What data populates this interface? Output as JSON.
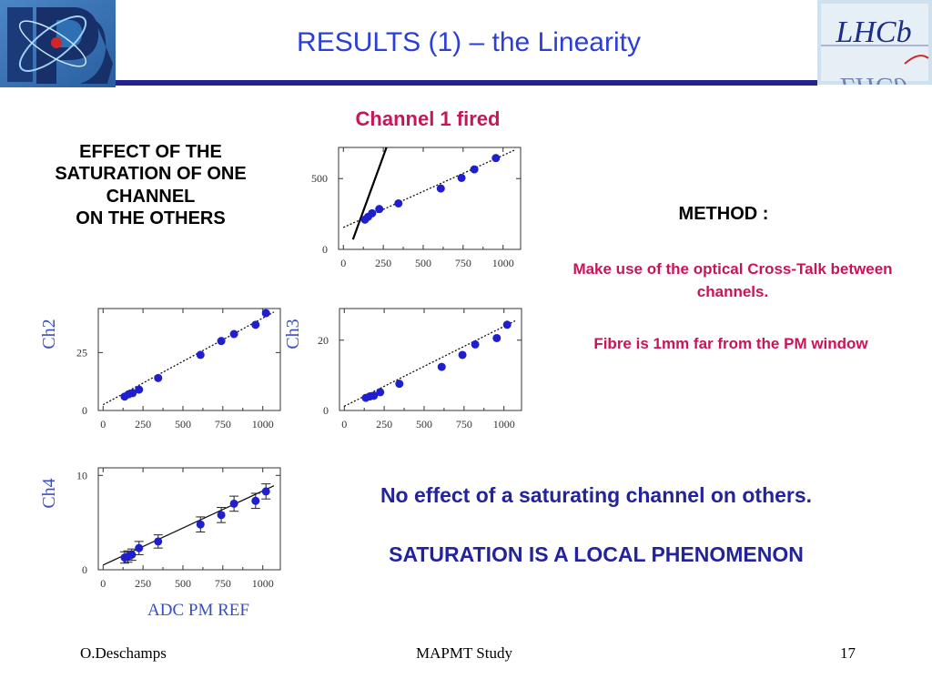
{
  "header": {
    "title": "RESULTS (1) – the Linearity",
    "left_logo": {
      "icon": "ipc-logo-icon",
      "background": "#2f6fb4",
      "mark": "#d3262a"
    },
    "right_logo": {
      "icon": "lhcb-logo-icon",
      "text": "LHCb",
      "background": "#cfe0ee"
    }
  },
  "colors": {
    "title": "#2b3fd6",
    "rule": "#23238e",
    "highlight": "#c8145a",
    "conclusion": "#23239e",
    "points": "#1f1fcf",
    "channel_labels": "#3a4fbe"
  },
  "left_note": {
    "lines": [
      "EFFECT OF THE",
      "SATURATION OF ONE",
      "CHANNEL",
      "ON THE OTHERS"
    ]
  },
  "method": {
    "heading": "METHOD :",
    "line1": "Make use of the optical Cross-Talk between channels.",
    "line2": "Fibre is 1mm far from the PM window"
  },
  "conclusions": {
    "line1": "No effect of a saturating channel on others.",
    "line2": "SATURATION IS A LOCAL PHENOMENON"
  },
  "footer": {
    "author": "O.Deschamps",
    "topic": "MAPMT Study",
    "page": "17"
  },
  "chart_data": [
    {
      "type": "scatter",
      "title": "Channel 1 fired",
      "channel_label": "",
      "xlabel": "",
      "xlim": [
        -30,
        1110
      ],
      "ylim": [
        0,
        720
      ],
      "xticks": [
        "0",
        "250",
        "500",
        "750",
        "1000"
      ],
      "yticks": [
        {
          "value": 0,
          "label": "0"
        },
        {
          "value": 500,
          "label": "500"
        }
      ],
      "x": [
        135,
        155,
        180,
        225,
        345,
        610,
        740,
        820,
        955
      ],
      "y": [
        210,
        230,
        255,
        285,
        325,
        430,
        505,
        565,
        645
      ],
      "error_bars": false,
      "fit_line": {
        "x": [
          0,
          1070
        ],
        "y": [
          155,
          700
        ],
        "style": "dotted"
      },
      "saturation_line": {
        "x": [
          60,
          270
        ],
        "y": [
          70,
          720
        ],
        "style": "solid"
      }
    },
    {
      "type": "scatter",
      "channel_label": "Ch2",
      "xlabel": "",
      "xlim": [
        -30,
        1110
      ],
      "ylim": [
        0,
        44
      ],
      "xticks": [
        "0",
        "250",
        "500",
        "750",
        "1000"
      ],
      "yticks": [
        {
          "value": 0,
          "label": "0"
        },
        {
          "value": 25,
          "label": "25"
        }
      ],
      "x": [
        135,
        160,
        185,
        225,
        345,
        610,
        740,
        820,
        955,
        1020
      ],
      "y": [
        6,
        7,
        7.5,
        9,
        14,
        24,
        30,
        33,
        37,
        42
      ],
      "error_bars": false,
      "fit_line": {
        "x": [
          0,
          1070
        ],
        "y": [
          2.5,
          42.5
        ],
        "style": "dotted"
      }
    },
    {
      "type": "scatter",
      "channel_label": "Ch3",
      "xlabel": "",
      "xlim": [
        -30,
        1110
      ],
      "ylim": [
        0,
        29
      ],
      "xticks": [
        "0",
        "250",
        "500",
        "750",
        "1000"
      ],
      "yticks": [
        {
          "value": 0,
          "label": "0"
        },
        {
          "value": 20,
          "label": "20"
        }
      ],
      "x": [
        135,
        160,
        185,
        225,
        345,
        610,
        740,
        820,
        955,
        1020
      ],
      "y": [
        3.6,
        4.0,
        4.2,
        5.2,
        7.6,
        12.4,
        15.8,
        18.8,
        20.6,
        24.4
      ],
      "error_bars": false,
      "fit_line": {
        "x": [
          0,
          1070
        ],
        "y": [
          1.2,
          25.5
        ],
        "style": "dotted"
      }
    },
    {
      "type": "scatter",
      "channel_label": "Ch4",
      "xlabel": "ADC PM REF",
      "xlim": [
        -30,
        1110
      ],
      "ylim": [
        0,
        10.8
      ],
      "xticks": [
        "0",
        "250",
        "500",
        "750",
        "1000"
      ],
      "yticks": [
        {
          "value": 0,
          "label": "0"
        },
        {
          "value": 10,
          "label": "10"
        }
      ],
      "x": [
        135,
        155,
        180,
        225,
        345,
        610,
        740,
        820,
        955,
        1020
      ],
      "y": [
        1.3,
        1.4,
        1.6,
        2.3,
        3.0,
        4.8,
        5.8,
        7.0,
        7.3,
        8.3
      ],
      "y_err": [
        0.6,
        0.6,
        0.6,
        0.7,
        0.7,
        0.8,
        0.8,
        0.8,
        0.8,
        0.8
      ],
      "error_bars": true,
      "fit_line": {
        "x": [
          0,
          1070
        ],
        "y": [
          0.5,
          8.9
        ],
        "style": "solid"
      }
    }
  ]
}
